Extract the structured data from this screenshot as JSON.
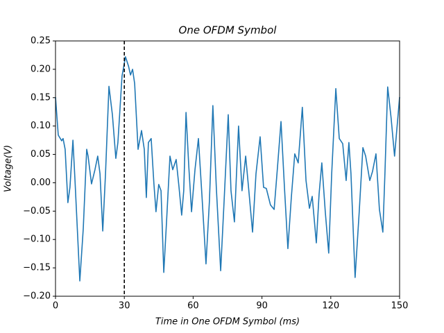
{
  "chart_data": {
    "type": "line",
    "title": "One OFDM Symbol",
    "x_label": "Time in One OFDM Symbol (ms)",
    "y_label": "Voltage(V)",
    "xlim": [
      0,
      150
    ],
    "ylim": [
      -0.2,
      0.25
    ],
    "xticks": [
      0,
      30,
      60,
      90,
      120,
      150
    ],
    "yticks": [
      {
        "value": -0.2,
        "label": "−0.20"
      },
      {
        "value": -0.15,
        "label": "−0.15"
      },
      {
        "value": -0.1,
        "label": "−0.10"
      },
      {
        "value": -0.05,
        "label": "−0.05"
      },
      {
        "value": 0,
        "label": "0.00"
      },
      0.05,
      {
        "value": 0.1,
        "label": "0.10"
      },
      0.15,
      {
        "value": 0.2,
        "label": "0.20"
      },
      0.25
    ],
    "vline_x": 30,
    "series": [
      {
        "color": "#1f77b4",
        "x": [
          0,
          1.2,
          2.7,
          3.3,
          4.2,
          5.4,
          6.3,
          7.6,
          8.5,
          10.6,
          12.1,
          13.6,
          14.2,
          15.7,
          17.2,
          18.4,
          19.4,
          20.6,
          21.8,
          23.3,
          24.8,
          26.3,
          27.2,
          29.0,
          30.5,
          31.8,
          32.7,
          33.6,
          34.5,
          36.0,
          37.5,
          38.7,
          39.6,
          40.5,
          41.7,
          42.9,
          43.8,
          45.0,
          46.0,
          47.2,
          48.4,
          49.9,
          51.1,
          52.6,
          53.8,
          55.0,
          55.9,
          56.9,
          58.1,
          59.3,
          60.8,
          62.3,
          63.8,
          65.6,
          67.1,
          68.6,
          70.1,
          72.0,
          73.5,
          75.3,
          76.5,
          78.0,
          79.8,
          81.3,
          82.9,
          84.1,
          85.9,
          87.4,
          89.2,
          90.7,
          91.9,
          93.7,
          95.3,
          96.8,
          98.3,
          99.8,
          101.3,
          102.8,
          104.3,
          105.8,
          107.6,
          109.2,
          110.7,
          111.9,
          113.7,
          114.9,
          116.1,
          117.6,
          119.1,
          120.4,
          122.2,
          123.7,
          125.2,
          126.7,
          127.9,
          128.8,
          130.6,
          132.4,
          134.0,
          135.2,
          137.0,
          138.2,
          139.7,
          141.2,
          142.7,
          143.6,
          144.8,
          146.3,
          147.8,
          150
        ],
        "values": [
          0.151,
          0.084,
          0.074,
          0.078,
          0.059,
          -0.035,
          -0.008,
          0.075,
          0.004,
          -0.173,
          -0.081,
          0.059,
          0.047,
          -0.002,
          0.023,
          0.047,
          0.016,
          -0.085,
          0.016,
          0.17,
          0.12,
          0.043,
          0.071,
          0.188,
          0.222,
          0.206,
          0.19,
          0.2,
          0.175,
          0.059,
          0.092,
          0.059,
          -0.026,
          0.071,
          0.078,
          -0.002,
          -0.051,
          -0.003,
          -0.014,
          -0.158,
          -0.069,
          0.047,
          0.023,
          0.041,
          -0.006,
          -0.057,
          -0.014,
          0.124,
          0.029,
          -0.051,
          0.023,
          0.078,
          -0.02,
          -0.143,
          -0.032,
          0.136,
          -0.008,
          -0.155,
          -0.032,
          0.12,
          -0.014,
          -0.069,
          0.1,
          -0.014,
          0.047,
          -0.006,
          -0.087,
          0.016,
          0.081,
          -0.008,
          -0.01,
          -0.039,
          -0.047,
          0.029,
          0.108,
          -0.008,
          -0.116,
          -0.026,
          0.051,
          0.035,
          0.133,
          0.004,
          -0.045,
          -0.024,
          -0.106,
          -0.02,
          0.035,
          -0.051,
          -0.124,
          0.016,
          0.166,
          0.078,
          0.069,
          0.004,
          0.071,
          0.016,
          -0.167,
          -0.051,
          0.062,
          0.047,
          0.004,
          0.02,
          0.051,
          -0.047,
          -0.087,
          0.016,
          0.169,
          0.114,
          0.047,
          0.151
        ]
      }
    ]
  }
}
